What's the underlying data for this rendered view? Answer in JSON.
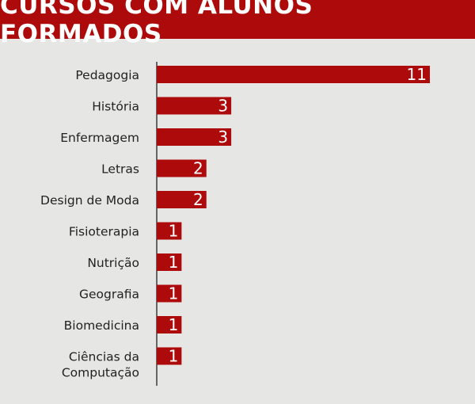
{
  "chart_data": {
    "type": "bar",
    "orientation": "horizontal",
    "title": "CURSOS COM ALUNOS FORMADOS",
    "categories": [
      "Pedagogia",
      "História",
      "Enfermagem",
      "Letras",
      "Design de Moda",
      "Fisioterapia",
      "Nutrição",
      "Geografia",
      "Biomedicina",
      "Ciências da Computação"
    ],
    "category_lines": [
      [
        "Pedagogia"
      ],
      [
        "História"
      ],
      [
        "Enfermagem"
      ],
      [
        "Letras"
      ],
      [
        "Design de Moda"
      ],
      [
        "Fisioterapia"
      ],
      [
        "Nutrição"
      ],
      [
        "Geografia"
      ],
      [
        "Biomedicina"
      ],
      [
        "Ciências da",
        "Computação"
      ]
    ],
    "values": [
      11,
      3,
      3,
      2,
      2,
      1,
      1,
      1,
      1,
      1
    ],
    "xlabel": "",
    "ylabel": "",
    "grid": false,
    "data_labels": true,
    "colors": {
      "bar": "#ad0b0b",
      "header": "#ad0b0b",
      "background": "#e6e6e4",
      "label": "#ffffff"
    }
  }
}
